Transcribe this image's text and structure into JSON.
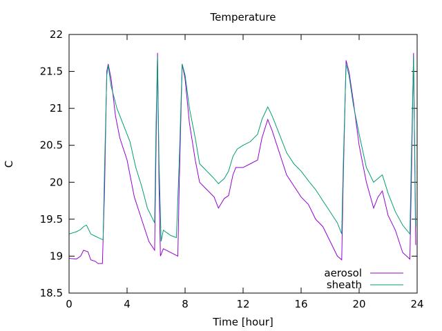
{
  "chart_data": {
    "type": "line",
    "title": "Temperature",
    "xlabel": "Time [hour]",
    "ylabel": "C",
    "xlim": [
      0,
      24
    ],
    "ylim": [
      18.5,
      22
    ],
    "x_ticks": [
      0,
      4,
      8,
      12,
      16,
      20,
      24
    ],
    "y_ticks": [
      18.5,
      19,
      19.5,
      20,
      20.5,
      21,
      21.5,
      22
    ],
    "x_tick_labels": [
      "0",
      "4",
      "8",
      "12",
      "16",
      "20",
      "24"
    ],
    "y_tick_labels": [
      "18.5",
      "19",
      "19.5",
      "20",
      "20.5",
      "21",
      "21.5",
      "22"
    ],
    "grid": false,
    "legend_position": "bottom-right",
    "series": [
      {
        "name": "aerosol",
        "color": "#9400d3",
        "points": [
          [
            0,
            18.97
          ],
          [
            0.5,
            18.96
          ],
          [
            0.8,
            19.0
          ],
          [
            1.0,
            19.08
          ],
          [
            1.3,
            19.06
          ],
          [
            1.5,
            18.95
          ],
          [
            1.8,
            18.93
          ],
          [
            2.0,
            18.9
          ],
          [
            2.3,
            18.9
          ],
          [
            2.45,
            19.9
          ],
          [
            2.6,
            21.5
          ],
          [
            2.7,
            21.6
          ],
          [
            2.9,
            21.4
          ],
          [
            3.2,
            20.9
          ],
          [
            3.5,
            20.6
          ],
          [
            4.0,
            20.3
          ],
          [
            4.5,
            19.8
          ],
          [
            5.0,
            19.5
          ],
          [
            5.5,
            19.2
          ],
          [
            5.9,
            19.08
          ],
          [
            6.0,
            20.5
          ],
          [
            6.1,
            21.75
          ],
          [
            6.2,
            20.0
          ],
          [
            6.3,
            19.0
          ],
          [
            6.5,
            19.1
          ],
          [
            7.0,
            19.05
          ],
          [
            7.5,
            19.0
          ],
          [
            7.6,
            20.0
          ],
          [
            7.8,
            21.6
          ],
          [
            8.0,
            21.4
          ],
          [
            8.3,
            20.8
          ],
          [
            8.7,
            20.3
          ],
          [
            9.0,
            20.0
          ],
          [
            9.5,
            19.9
          ],
          [
            10.0,
            19.8
          ],
          [
            10.3,
            19.65
          ],
          [
            10.7,
            19.78
          ],
          [
            11.0,
            19.82
          ],
          [
            11.3,
            20.1
          ],
          [
            11.5,
            20.2
          ],
          [
            12.0,
            20.2
          ],
          [
            12.5,
            20.25
          ],
          [
            13.0,
            20.3
          ],
          [
            13.3,
            20.6
          ],
          [
            13.7,
            20.85
          ],
          [
            14.0,
            20.7
          ],
          [
            14.5,
            20.4
          ],
          [
            15.0,
            20.1
          ],
          [
            15.5,
            19.95
          ],
          [
            16.0,
            19.8
          ],
          [
            16.5,
            19.7
          ],
          [
            17.0,
            19.5
          ],
          [
            17.5,
            19.4
          ],
          [
            18.0,
            19.2
          ],
          [
            18.5,
            19.0
          ],
          [
            18.8,
            18.95
          ],
          [
            18.9,
            20.0
          ],
          [
            19.1,
            21.65
          ],
          [
            19.3,
            21.5
          ],
          [
            19.6,
            21.1
          ],
          [
            20.0,
            20.5
          ],
          [
            20.5,
            20.0
          ],
          [
            21.0,
            19.65
          ],
          [
            21.3,
            19.8
          ],
          [
            21.6,
            19.88
          ],
          [
            22.0,
            19.55
          ],
          [
            22.5,
            19.35
          ],
          [
            23.0,
            19.05
          ],
          [
            23.5,
            18.96
          ],
          [
            23.6,
            20.0
          ],
          [
            23.75,
            21.75
          ],
          [
            23.9,
            19.15
          ]
        ]
      },
      {
        "name": "sheath",
        "color": "#009e73",
        "points": [
          [
            0,
            19.3
          ],
          [
            0.5,
            19.33
          ],
          [
            0.8,
            19.36
          ],
          [
            1.0,
            19.4
          ],
          [
            1.2,
            19.42
          ],
          [
            1.5,
            19.3
          ],
          [
            1.8,
            19.27
          ],
          [
            2.0,
            19.25
          ],
          [
            2.35,
            19.22
          ],
          [
            2.45,
            20.2
          ],
          [
            2.6,
            21.45
          ],
          [
            2.7,
            21.58
          ],
          [
            2.9,
            21.3
          ],
          [
            3.3,
            21.0
          ],
          [
            3.8,
            20.75
          ],
          [
            4.2,
            20.55
          ],
          [
            4.6,
            20.2
          ],
          [
            5.0,
            19.95
          ],
          [
            5.4,
            19.65
          ],
          [
            5.9,
            19.45
          ],
          [
            6.0,
            20.8
          ],
          [
            6.1,
            21.7
          ],
          [
            6.2,
            20.3
          ],
          [
            6.35,
            19.2
          ],
          [
            6.5,
            19.35
          ],
          [
            7.0,
            19.28
          ],
          [
            7.4,
            19.25
          ],
          [
            7.6,
            20.3
          ],
          [
            7.8,
            21.6
          ],
          [
            8.0,
            21.45
          ],
          [
            8.3,
            21.0
          ],
          [
            8.7,
            20.6
          ],
          [
            9.0,
            20.25
          ],
          [
            9.5,
            20.15
          ],
          [
            10.0,
            20.05
          ],
          [
            10.3,
            19.98
          ],
          [
            10.7,
            20.05
          ],
          [
            11.0,
            20.15
          ],
          [
            11.3,
            20.35
          ],
          [
            11.6,
            20.45
          ],
          [
            12.0,
            20.5
          ],
          [
            12.5,
            20.55
          ],
          [
            13.0,
            20.65
          ],
          [
            13.3,
            20.85
          ],
          [
            13.7,
            21.02
          ],
          [
            14.0,
            20.9
          ],
          [
            14.5,
            20.65
          ],
          [
            15.0,
            20.4
          ],
          [
            15.5,
            20.25
          ],
          [
            16.0,
            20.15
          ],
          [
            16.5,
            20.02
          ],
          [
            17.0,
            19.9
          ],
          [
            17.5,
            19.75
          ],
          [
            18.0,
            19.6
          ],
          [
            18.5,
            19.45
          ],
          [
            18.8,
            19.3
          ],
          [
            18.9,
            20.2
          ],
          [
            19.1,
            21.6
          ],
          [
            19.3,
            21.45
          ],
          [
            19.6,
            21.05
          ],
          [
            20.0,
            20.65
          ],
          [
            20.5,
            20.2
          ],
          [
            21.0,
            20.0
          ],
          [
            21.3,
            20.05
          ],
          [
            21.6,
            20.1
          ],
          [
            22.0,
            19.85
          ],
          [
            22.5,
            19.6
          ],
          [
            23.0,
            19.42
          ],
          [
            23.5,
            19.3
          ],
          [
            23.6,
            20.3
          ],
          [
            23.75,
            21.7
          ],
          [
            23.9,
            19.4
          ]
        ]
      }
    ]
  }
}
